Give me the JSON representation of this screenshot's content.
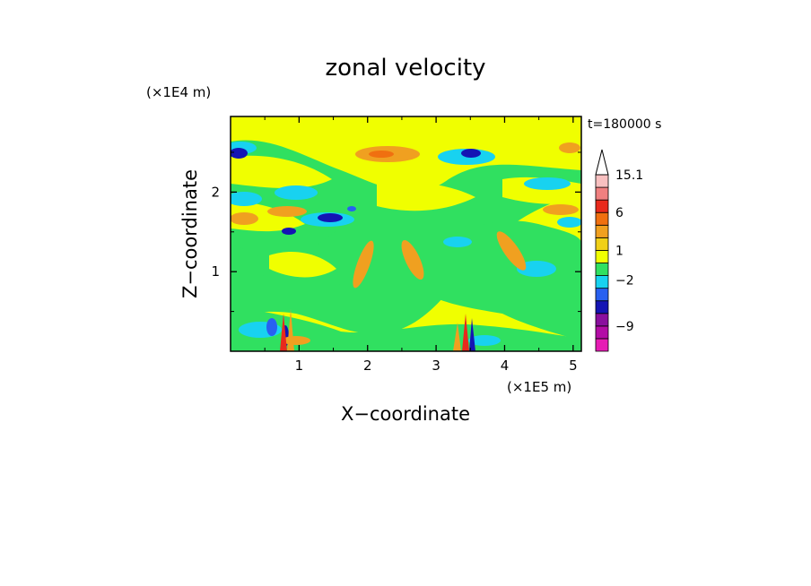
{
  "chart_data": {
    "type": "heatmap",
    "title": "zonal velocity",
    "xlabel": "X−coordinate",
    "ylabel": "Z−coordinate",
    "x_scale_label": "(×1E5 m)",
    "y_scale_label": "(×1E4 m)",
    "time_label": "t=180000 s",
    "x_ticks": [
      "1",
      "2",
      "3",
      "4",
      "5"
    ],
    "x_tick_values": [
      1,
      2,
      3,
      4,
      5
    ],
    "y_ticks": [
      "1",
      "2"
    ],
    "y_tick_values": [
      1,
      2
    ],
    "xlim": [
      0,
      5.12
    ],
    "ylim": [
      0,
      2.95
    ],
    "colorbar": {
      "ticks": [
        {
          "label": "15.1",
          "value": 15.1
        },
        {
          "label": "6",
          "value": 6
        },
        {
          "label": "1",
          "value": 1
        },
        {
          "label": "−2",
          "value": -2
        },
        {
          "label": "−9",
          "value": -9
        }
      ],
      "levels": [
        {
          "color": "#e61cb4",
          "lo": -13,
          "hi": -11
        },
        {
          "color": "#b30da6",
          "lo": -11,
          "hi": -9
        },
        {
          "color": "#8a0f9e",
          "lo": -9,
          "hi": -7
        },
        {
          "color": "#1414b4",
          "lo": -7,
          "hi": -5
        },
        {
          "color": "#2860f0",
          "lo": -5,
          "hi": -3
        },
        {
          "color": "#18d2f0",
          "lo": -3,
          "hi": -1.5
        },
        {
          "color": "#30e060",
          "lo": -1.5,
          "hi": 0
        },
        {
          "color": "#f0ff00",
          "lo": 0,
          "hi": 1
        },
        {
          "color": "#f0d018",
          "lo": 1,
          "hi": 2
        },
        {
          "color": "#f0a020",
          "lo": 2,
          "hi": 4
        },
        {
          "color": "#f07010",
          "lo": 4,
          "hi": 6
        },
        {
          "color": "#e82a1c",
          "lo": 6,
          "hi": 9
        },
        {
          "color": "#f08080",
          "lo": 9,
          "hi": 12
        },
        {
          "color": "#f8c0c0",
          "lo": 12,
          "hi": 15.1
        }
      ],
      "over_color": "#ffffff"
    },
    "field_background_color": "#f0ff00"
  }
}
